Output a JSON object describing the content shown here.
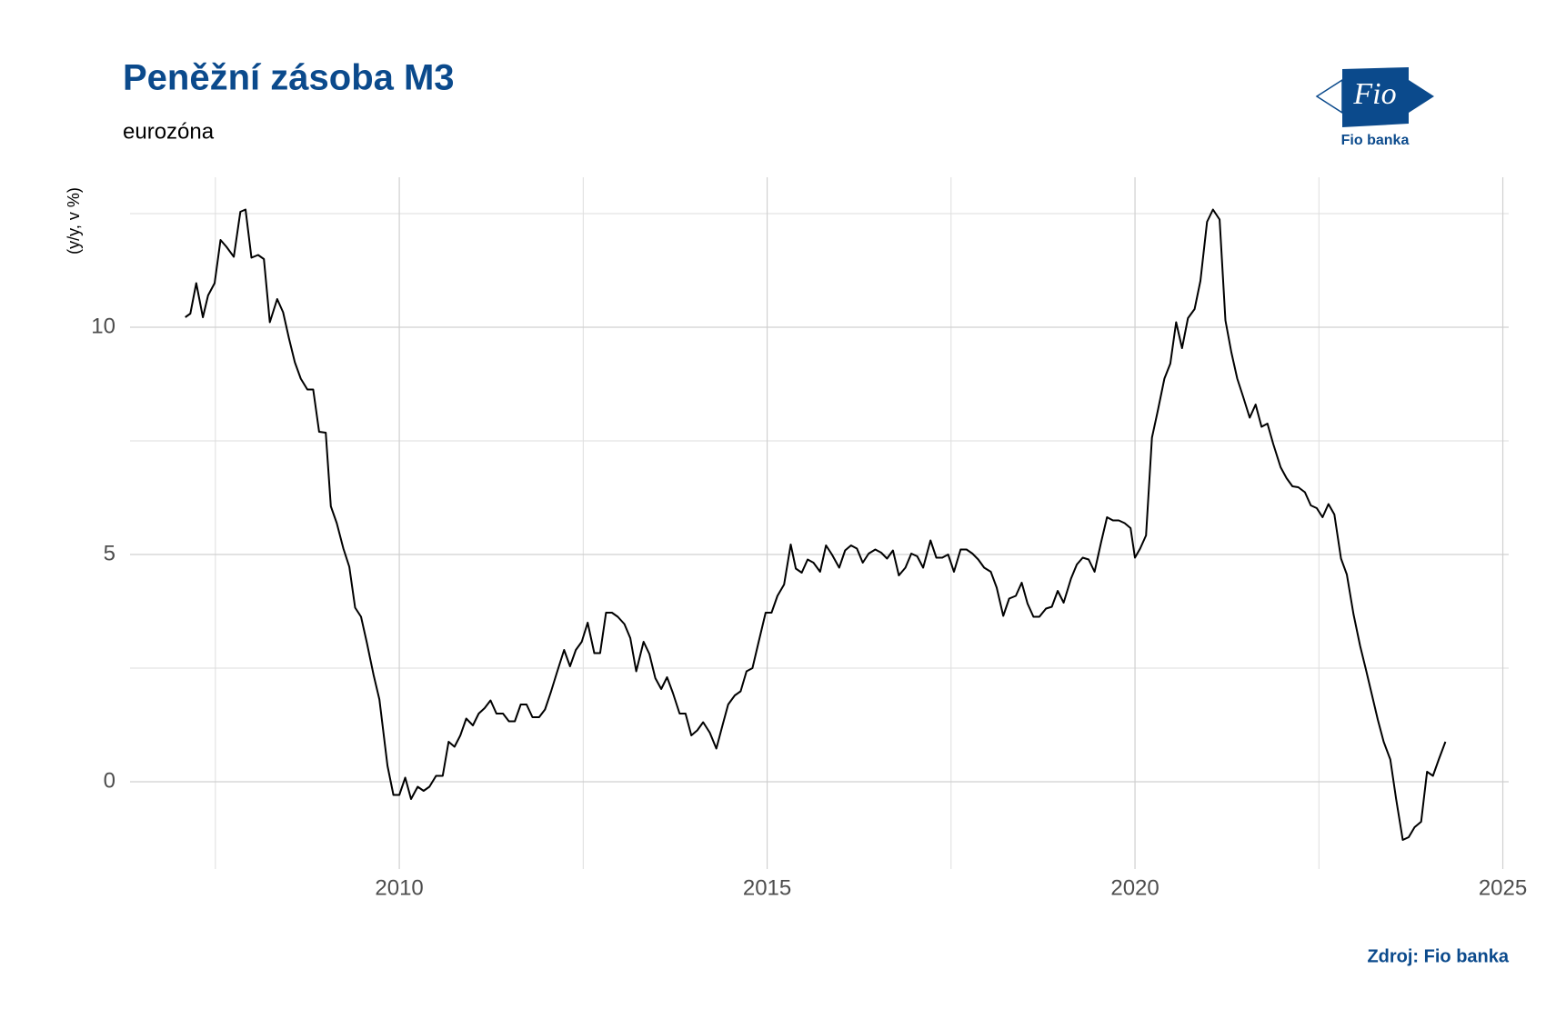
{
  "chart_data": {
    "type": "line",
    "title": "Peněžní zásoba M3",
    "subtitle": "eurozóna",
    "ylabel": "(y/y, v %)",
    "source": "Zdroj: Fio banka",
    "logo": {
      "mark": "Fio",
      "name": "Fio banka"
    },
    "color": "#000000",
    "grid": true,
    "xlim": [
      2006.34,
      2025.08
    ],
    "ylim": [
      -1.92,
      13.3
    ],
    "xticks": [
      2010,
      2015,
      2020,
      2025
    ],
    "yticks": [
      0,
      5,
      10
    ],
    "xminor": [
      2007.5,
      2012.5,
      2017.5,
      2022.5
    ],
    "yminor": [
      2.5,
      7.5,
      12.5
    ],
    "x": [
      2007.09,
      2007.16,
      2007.24,
      2007.33,
      2007.4,
      2007.49,
      2007.57,
      2007.65,
      2007.75,
      2007.84,
      2007.91,
      2007.99,
      2008.08,
      2008.16,
      2008.24,
      2008.34,
      2008.42,
      2008.5,
      2008.58,
      2008.66,
      2008.75,
      2008.83,
      2008.91,
      2009.0,
      2009.07,
      2009.15,
      2009.24,
      2009.32,
      2009.4,
      2009.48,
      2009.56,
      2009.65,
      2009.73,
      2009.84,
      2009.92,
      2010.0,
      2010.08,
      2010.16,
      2010.25,
      2010.33,
      2010.41,
      2010.5,
      2010.59,
      2010.67,
      2010.75,
      2010.83,
      2010.91,
      2011.0,
      2011.08,
      2011.16,
      2011.24,
      2011.32,
      2011.41,
      2011.49,
      2011.57,
      2011.65,
      2011.73,
      2011.81,
      2011.9,
      2011.98,
      2012.06,
      2012.14,
      2012.24,
      2012.32,
      2012.4,
      2012.48,
      2012.56,
      2012.65,
      2012.73,
      2012.81,
      2012.89,
      2012.97,
      2013.06,
      2013.14,
      2013.22,
      2013.32,
      2013.4,
      2013.48,
      2013.56,
      2013.64,
      2013.72,
      2013.81,
      2013.89,
      2013.97,
      2014.05,
      2014.13,
      2014.22,
      2014.31,
      2014.39,
      2014.47,
      2014.56,
      2014.64,
      2014.72,
      2014.8,
      2014.88,
      2014.98,
      2015.06,
      2015.14,
      2015.23,
      2015.32,
      2015.39,
      2015.47,
      2015.55,
      2015.63,
      2015.72,
      2015.8,
      2015.88,
      2015.98,
      2016.06,
      2016.14,
      2016.22,
      2016.3,
      2016.38,
      2016.47,
      2016.55,
      2016.63,
      2016.71,
      2016.79,
      2016.88,
      2016.96,
      2017.04,
      2017.12,
      2017.22,
      2017.3,
      2017.38,
      2017.46,
      2017.54,
      2017.63,
      2017.71,
      2017.79,
      2017.87,
      2017.95,
      2018.04,
      2018.12,
      2018.21,
      2018.29,
      2018.38,
      2018.46,
      2018.54,
      2018.62,
      2018.7,
      2018.79,
      2018.87,
      2018.95,
      2019.03,
      2019.13,
      2019.21,
      2019.29,
      2019.37,
      2019.45,
      2019.54,
      2019.62,
      2019.7,
      2019.78,
      2019.86,
      2019.94,
      2020.0,
      2020.07,
      2020.15,
      2020.23,
      2020.31,
      2020.4,
      2020.48,
      2020.56,
      2020.64,
      2020.72,
      2020.81,
      2020.89,
      2020.98,
      2021.06,
      2021.15,
      2021.23,
      2021.31,
      2021.39,
      2021.47,
      2021.56,
      2021.64,
      2021.72,
      2021.8,
      2021.88,
      2021.98,
      2022.06,
      2022.14,
      2022.22,
      2022.31,
      2022.39,
      2022.47,
      2022.55,
      2022.63,
      2022.71,
      2022.8,
      2022.88,
      2022.97,
      2023.06,
      2023.14,
      2023.22,
      2023.3,
      2023.38,
      2023.47,
      2023.55,
      2023.64,
      2023.72,
      2023.8,
      2023.89,
      2023.97,
      2024.05,
      2024.13,
      2024.22
    ],
    "values": [
      10.22,
      10.3,
      10.97,
      10.22,
      10.7,
      10.97,
      11.92,
      11.77,
      11.55,
      12.54,
      12.59,
      11.53,
      11.59,
      11.5,
      10.11,
      10.62,
      10.33,
      9.76,
      9.23,
      8.87,
      8.63,
      8.63,
      7.7,
      7.68,
      6.06,
      5.69,
      5.13,
      4.73,
      3.83,
      3.63,
      3.05,
      2.35,
      1.81,
      0.35,
      -0.29,
      -0.29,
      0.09,
      -0.38,
      -0.11,
      -0.2,
      -0.11,
      0.13,
      0.13,
      0.88,
      0.77,
      1.02,
      1.39,
      1.24,
      1.5,
      1.62,
      1.79,
      1.5,
      1.5,
      1.33,
      1.33,
      1.7,
      1.7,
      1.42,
      1.42,
      1.59,
      1.97,
      2.39,
      2.9,
      2.54,
      2.9,
      3.08,
      3.5,
      2.83,
      2.83,
      3.72,
      3.72,
      3.63,
      3.47,
      3.16,
      2.43,
      3.08,
      2.81,
      2.28,
      2.04,
      2.3,
      1.95,
      1.5,
      1.5,
      1.02,
      1.13,
      1.31,
      1.08,
      0.73,
      1.22,
      1.7,
      1.9,
      1.99,
      2.43,
      2.5,
      3.05,
      3.72,
      3.72,
      4.09,
      4.34,
      5.22,
      4.69,
      4.6,
      4.89,
      4.82,
      4.62,
      5.2,
      5.0,
      4.71,
      5.09,
      5.2,
      5.13,
      4.82,
      5.02,
      5.11,
      5.04,
      4.91,
      5.09,
      4.54,
      4.71,
      5.02,
      4.96,
      4.71,
      5.31,
      4.93,
      4.93,
      5.0,
      4.62,
      5.11,
      5.11,
      5.02,
      4.89,
      4.71,
      4.62,
      4.27,
      3.65,
      4.03,
      4.09,
      4.38,
      3.92,
      3.63,
      3.63,
      3.81,
      3.85,
      4.2,
      3.94,
      4.47,
      4.78,
      4.93,
      4.89,
      4.62,
      5.27,
      5.82,
      5.75,
      5.75,
      5.69,
      5.58,
      4.93,
      5.13,
      5.42,
      7.57,
      8.16,
      8.87,
      9.2,
      10.11,
      9.54,
      10.2,
      10.4,
      11.02,
      12.32,
      12.59,
      12.37,
      10.15,
      9.45,
      8.87,
      8.47,
      8.01,
      8.3,
      7.81,
      7.88,
      7.43,
      6.92,
      6.68,
      6.5,
      6.48,
      6.37,
      6.08,
      6.02,
      5.82,
      6.11,
      5.88,
      4.91,
      4.56,
      3.69,
      2.99,
      2.46,
      1.92,
      1.37,
      0.88,
      0.49,
      -0.38,
      -1.28,
      -1.22,
      -1.0,
      -0.88,
      0.22,
      0.13,
      0.49,
      0.88
    ]
  }
}
